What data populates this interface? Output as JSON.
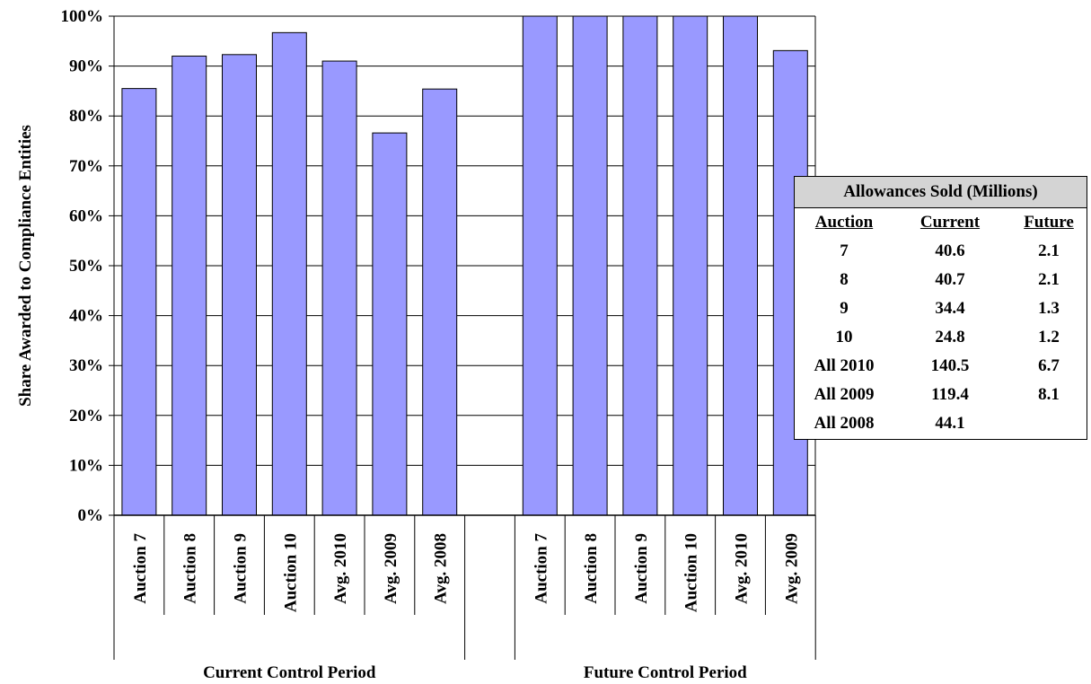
{
  "chart_data": {
    "type": "bar",
    "ylabel": "Share Awarded to Compliance Entities",
    "ylim": [
      0,
      100
    ],
    "yticks": [
      "0%",
      "10%",
      "20%",
      "30%",
      "40%",
      "50%",
      "60%",
      "70%",
      "80%",
      "90%",
      "100%"
    ],
    "bar_color": "#9999ff",
    "grid": true,
    "groups": [
      {
        "name": "Current Control Period",
        "categories": [
          "Auction 7",
          "Auction 8",
          "Auction 9",
          "Auction 10",
          "Avg. 2010",
          "Avg. 2009",
          "Avg. 2008"
        ],
        "values": [
          85.5,
          92.0,
          92.3,
          96.7,
          91.0,
          76.6,
          85.4
        ]
      },
      {
        "name": "Future Control Period",
        "categories": [
          "Auction 7",
          "Auction 8",
          "Auction 9",
          "Auction 10",
          "Avg. 2010",
          "Avg. 2009"
        ],
        "values": [
          100,
          100,
          100,
          100,
          100,
          93.1
        ]
      }
    ]
  },
  "table": {
    "title": "Allowances Sold (Millions)",
    "headers": [
      "Auction",
      "Current",
      "Future"
    ],
    "rows": [
      [
        "7",
        "40.6",
        "2.1"
      ],
      [
        "8",
        "40.7",
        "2.1"
      ],
      [
        "9",
        "34.4",
        "1.3"
      ],
      [
        "10",
        "24.8",
        "1.2"
      ],
      [
        "All 2010",
        "140.5",
        "6.7"
      ],
      [
        "All 2009",
        "119.4",
        "8.1"
      ],
      [
        "All 2008",
        "44.1",
        ""
      ]
    ]
  }
}
